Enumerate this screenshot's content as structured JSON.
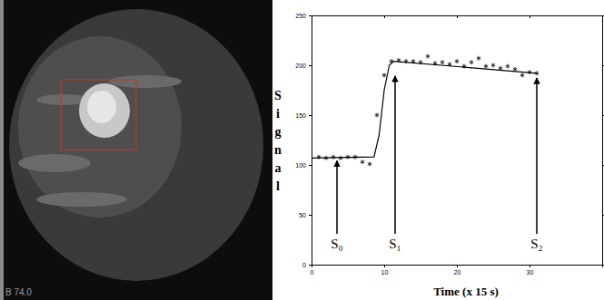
{
  "image": {
    "caption": "B 74.0"
  },
  "chart_data": {
    "type": "scatter",
    "xlabel": "Time (x 15 s)",
    "ylabel": "Signal",
    "xlim": [
      0,
      40
    ],
    "xticks": [
      0,
      10,
      20,
      30
    ],
    "ylim": [
      0,
      250
    ],
    "yticks": [
      0,
      50,
      100,
      150,
      200,
      250
    ],
    "series": [
      {
        "type": "scatter",
        "marker": "asterisk",
        "color": "#000000",
        "x": [
          1,
          2,
          3,
          4,
          5,
          6,
          7,
          8,
          9,
          10,
          11,
          12,
          13,
          14,
          15,
          16,
          17,
          18,
          19,
          20,
          21,
          22,
          23,
          24,
          25,
          26,
          27,
          28,
          29,
          30,
          31
        ],
        "values": [
          108,
          107,
          108,
          107,
          108,
          108,
          103,
          101,
          150,
          190,
          204,
          205,
          204,
          204,
          203,
          209,
          202,
          203,
          201,
          204,
          199,
          203,
          207,
          199,
          200,
          197,
          199,
          196,
          190,
          193,
          192
        ]
      },
      {
        "type": "line",
        "line_style": "solid",
        "color": "#000000",
        "x": [
          0,
          8.6,
          9.3,
          10,
          10.7,
          11.3,
          31
        ],
        "values": [
          107,
          108,
          130,
          175,
          200,
          204,
          192
        ]
      }
    ],
    "annotations": [
      {
        "text": "S₀",
        "x": 3.5,
        "y": 107
      },
      {
        "text": "S₁",
        "x": 11.5,
        "y": 192
      },
      {
        "text": "S₂",
        "x": 31,
        "y": 190
      }
    ]
  }
}
